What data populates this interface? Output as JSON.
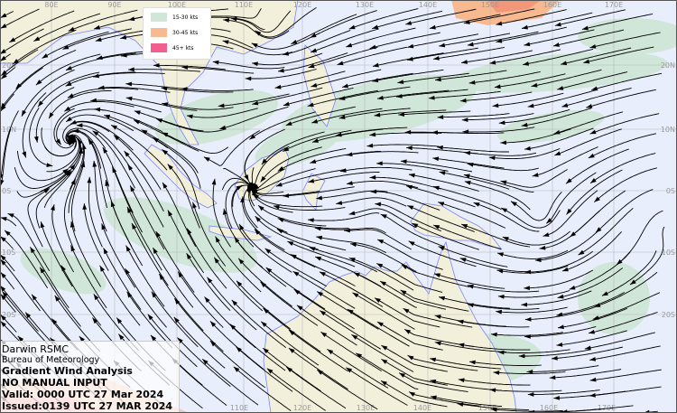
{
  "info": {
    "centre": "Darwin RSMC",
    "agency": "Bureau of Meteorology",
    "product": "Gradient Wind Analysis",
    "note": "NO MANUAL INPUT",
    "valid": "Valid:   0000 UTC 27 Mar 2024",
    "issued": "Issued:0139 UTC 27 MAR 2024"
  },
  "legend": [
    {
      "label": "15-30 kts",
      "color": "#cfe6d8"
    },
    {
      "label": "30-45 kts",
      "color": "#f6b990"
    },
    {
      "label": "45+ kts",
      "color": "#f25f8f"
    }
  ],
  "colors": {
    "ocean": "#e8eefc",
    "land": "#f2f0da",
    "coast": "#7b84ff",
    "wind_15_30": "#cfe6d8",
    "wind_30_45": "#f6b990",
    "wind_45": "#f25f8f",
    "streamline": "#000000"
  },
  "grid": {
    "top_labels": [
      "80E",
      "90E",
      "100E",
      "110E",
      "120E",
      "130E",
      "140E",
      "150E",
      "160E",
      "170E"
    ],
    "bottom_labels": [
      "110E",
      "120E",
      "130E",
      "140E",
      "150E",
      "160E",
      "170E"
    ],
    "left_labels": [
      "20N",
      "10N",
      "0S",
      "10S",
      "20S"
    ],
    "right_labels": [
      "20N",
      "10N",
      "0S",
      "10S",
      "20S"
    ]
  }
}
